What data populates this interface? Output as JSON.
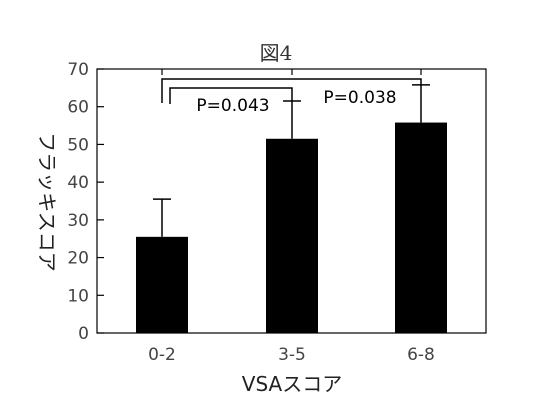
{
  "chart_data": {
    "type": "bar",
    "title": "図4",
    "xlabel": "VSAスコア",
    "ylabel": "フラッキスコア",
    "categories": [
      "0-2",
      "3-5",
      "6-8"
    ],
    "values": [
      25.5,
      51.5,
      55.8
    ],
    "error_upper": [
      10.0,
      10.0,
      10.0
    ],
    "ylim": [
      0,
      70
    ],
    "yticks": [
      0,
      10,
      20,
      30,
      40,
      50,
      60,
      70
    ],
    "grid": false,
    "bar_color": "#000000",
    "annotations": [
      {
        "from": 1,
        "to": 2,
        "label": "P=0.043"
      },
      {
        "from": 1,
        "to": 3,
        "label": "P=0.038"
      }
    ]
  }
}
